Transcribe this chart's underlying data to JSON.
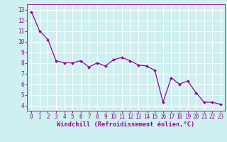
{
  "x": [
    0,
    1,
    2,
    3,
    4,
    5,
    6,
    7,
    8,
    9,
    10,
    11,
    12,
    13,
    14,
    15,
    16,
    17,
    18,
    19,
    20,
    21,
    22,
    23
  ],
  "y": [
    12.8,
    11.0,
    10.2,
    8.2,
    8.0,
    8.0,
    8.2,
    7.6,
    8.0,
    7.7,
    8.3,
    8.5,
    8.2,
    7.8,
    7.7,
    7.3,
    4.3,
    6.6,
    6.0,
    6.3,
    5.2,
    4.3,
    4.3,
    4.1
  ],
  "line_color": "#990099",
  "marker": "D",
  "marker_size": 2.0,
  "line_width": 0.9,
  "bg_color": "#cff0f0",
  "grid_color": "#ffffff",
  "xlabel": "Windchill (Refroidissement éolien,°C)",
  "xlabel_color": "#990099",
  "tick_color": "#990099",
  "ylim": [
    3.5,
    13.5
  ],
  "xlim": [
    -0.5,
    23.5
  ],
  "yticks": [
    4,
    5,
    6,
    7,
    8,
    9,
    10,
    11,
    12,
    13
  ],
  "xticks": [
    0,
    1,
    2,
    3,
    4,
    5,
    6,
    7,
    8,
    9,
    10,
    11,
    12,
    13,
    14,
    15,
    16,
    17,
    18,
    19,
    20,
    21,
    22,
    23
  ],
  "tick_fontsize": 5.5,
  "xlabel_fontsize": 6.2
}
